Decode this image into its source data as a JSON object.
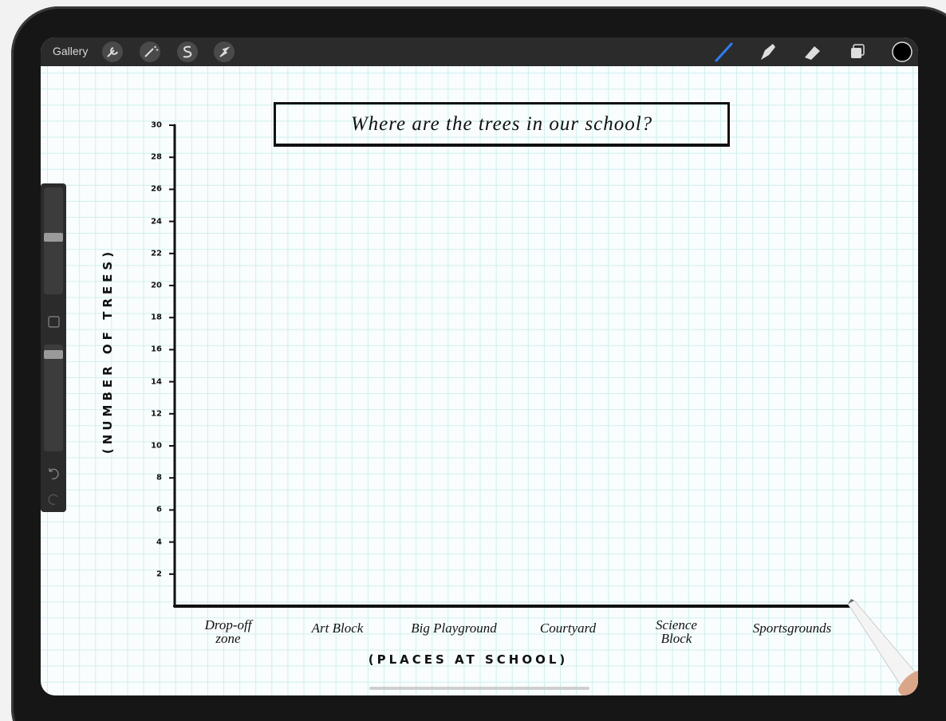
{
  "toolbar": {
    "gallery": "Gallery"
  },
  "canvas": {
    "title": "Where are the trees in our school?",
    "y_axis_label": "(NUMBER OF TREES)",
    "x_axis_label": "(PLACES AT SCHOOL)",
    "yticks": [
      2,
      4,
      6,
      8,
      10,
      12,
      14,
      16,
      18,
      20,
      22,
      24,
      26,
      28,
      30
    ],
    "categories": [
      "Drop-off\nzone",
      "Art Block",
      "Big Playground",
      "Courtyard",
      "Science\nBlock",
      "Sportsgrounds"
    ]
  }
}
